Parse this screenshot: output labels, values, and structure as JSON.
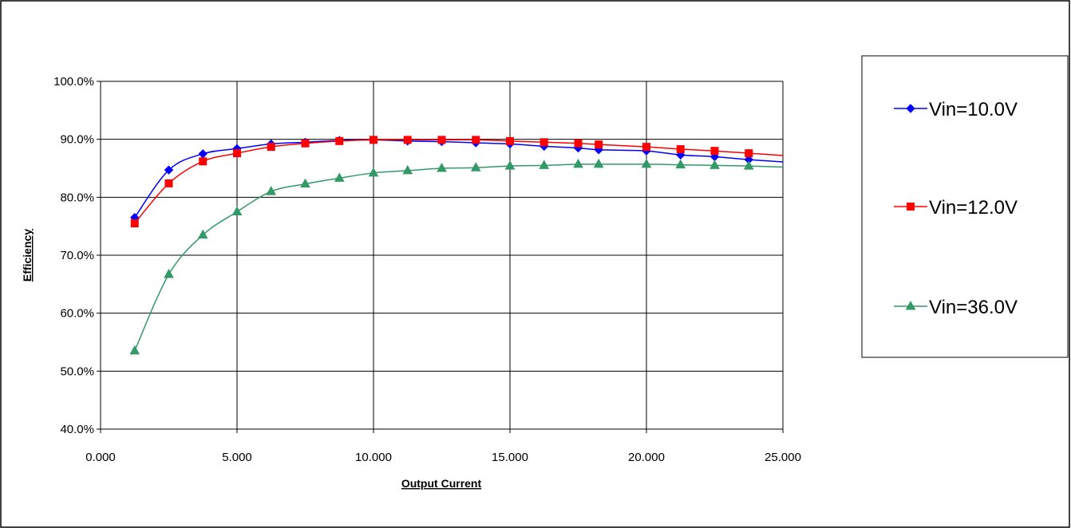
{
  "chart_data": {
    "type": "line",
    "title": "",
    "xlabel": "Output Current",
    "ylabel": "Efficiency",
    "xlim": [
      0,
      25
    ],
    "ylim": [
      0.4,
      1.0
    ],
    "x_ticks": [
      "0.000",
      "5.000",
      "10.000",
      "15.000",
      "20.000",
      "25.000"
    ],
    "x_tick_values": [
      0,
      5,
      10,
      15,
      20,
      25
    ],
    "y_ticks": [
      "40.0%",
      "50.0%",
      "60.0%",
      "70.0%",
      "80.0%",
      "90.0%",
      "100.0%"
    ],
    "y_tick_values": [
      0.4,
      0.5,
      0.6,
      0.7,
      0.8,
      0.9,
      1.0
    ],
    "grid": true,
    "legend_position": "right",
    "series": [
      {
        "name": "Vin=10.0V",
        "color": "#0000ff",
        "marker": "diamond",
        "x": [
          1.25,
          2.5,
          3.75,
          5.0,
          6.25,
          7.5,
          8.75,
          10.0,
          11.25,
          12.5,
          13.75,
          15.0,
          16.25,
          17.5,
          18.25,
          20.0,
          21.25,
          22.5,
          23.75,
          25.0
        ],
        "y": [
          0.765,
          0.847,
          0.875,
          0.884,
          0.892,
          0.895,
          0.898,
          0.899,
          0.897,
          0.896,
          0.894,
          0.892,
          0.888,
          0.885,
          0.882,
          0.88,
          0.873,
          0.87,
          0.865,
          0.861
        ]
      },
      {
        "name": "Vin=12.0V",
        "color": "#ff0000",
        "marker": "square",
        "x": [
          1.25,
          2.5,
          3.75,
          5.0,
          6.25,
          7.5,
          8.75,
          10.0,
          11.25,
          12.5,
          13.75,
          15.0,
          16.25,
          17.5,
          18.25,
          20.0,
          21.25,
          22.5,
          23.75,
          25.0
        ],
        "y": [
          0.755,
          0.824,
          0.862,
          0.876,
          0.887,
          0.893,
          0.897,
          0.899,
          0.899,
          0.899,
          0.899,
          0.897,
          0.895,
          0.893,
          0.891,
          0.887,
          0.883,
          0.88,
          0.876,
          0.872
        ]
      },
      {
        "name": "Vin=36.0V",
        "color": "#339966",
        "marker": "triangle",
        "x": [
          1.25,
          2.5,
          3.75,
          5.0,
          6.25,
          7.5,
          8.75,
          10.0,
          11.25,
          12.5,
          13.75,
          15.0,
          16.25,
          17.5,
          18.25,
          20.0,
          21.25,
          22.5,
          23.75,
          25.0
        ],
        "y": [
          0.535,
          0.667,
          0.735,
          0.775,
          0.81,
          0.823,
          0.833,
          0.842,
          0.846,
          0.85,
          0.851,
          0.854,
          0.855,
          0.857,
          0.857,
          0.857,
          0.856,
          0.855,
          0.854,
          0.852
        ]
      }
    ]
  }
}
